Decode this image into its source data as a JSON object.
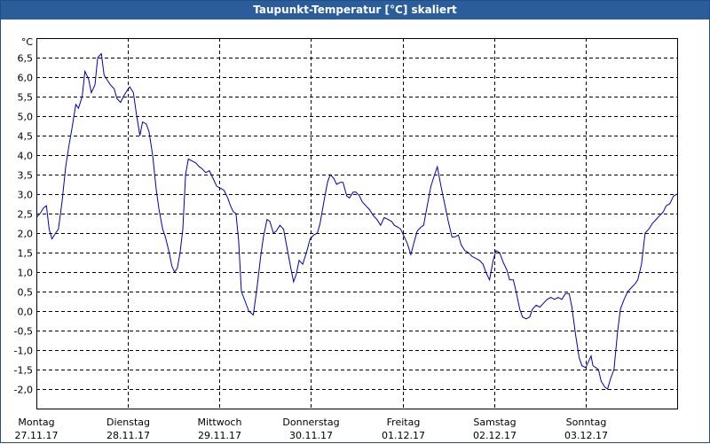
{
  "window": {
    "title": "Taupunkt-Temperatur [°C] skaliert"
  },
  "chart_data": {
    "type": "line",
    "title": "Taupunkt-Temperatur [°C] skaliert",
    "ylabel": "°C",
    "ylim": [
      -2.5,
      7.0
    ],
    "xlim": [
      0,
      7
    ],
    "grid": true,
    "y_ticks": [
      "6,5",
      "6,0",
      "5,5",
      "5,0",
      "4,5",
      "4,0",
      "3,5",
      "3,0",
      "2,5",
      "2,0",
      "1,5",
      "1,0",
      "0,5",
      "0,0",
      "-0,5",
      "-1,0",
      "-1,5",
      "-2,0"
    ],
    "y_tick_values": [
      6.5,
      6.0,
      5.5,
      5.0,
      4.5,
      4.0,
      3.5,
      3.0,
      2.5,
      2.0,
      1.5,
      1.0,
      0.5,
      0.0,
      -0.5,
      -1.0,
      -1.5,
      -2.0
    ],
    "x_ticks": [
      {
        "day": "Montag",
        "date": "27.11.17"
      },
      {
        "day": "Dienstag",
        "date": "28.11.17"
      },
      {
        "day": "Mittwoch",
        "date": "29.11.17"
      },
      {
        "day": "Donnerstag",
        "date": "30.11.17"
      },
      {
        "day": "Freitag",
        "date": "01.12.17"
      },
      {
        "day": "Samstag",
        "date": "02.12.17"
      },
      {
        "day": "Sonntag",
        "date": "03.12.17"
      }
    ],
    "colors": {
      "line": "#0000b0",
      "grid": "#000000",
      "plot_border": "#000000"
    },
    "series": [
      {
        "points": [
          [
            0.0,
            2.4
          ],
          [
            0.04,
            2.5
          ],
          [
            0.08,
            2.65
          ],
          [
            0.11,
            2.7
          ],
          [
            0.14,
            2.1
          ],
          [
            0.17,
            1.85
          ],
          [
            0.21,
            2.0
          ],
          [
            0.24,
            2.1
          ],
          [
            0.28,
            2.8
          ],
          [
            0.32,
            3.7
          ],
          [
            0.36,
            4.3
          ],
          [
            0.39,
            4.7
          ],
          [
            0.43,
            5.3
          ],
          [
            0.46,
            5.2
          ],
          [
            0.5,
            5.5
          ],
          [
            0.53,
            6.15
          ],
          [
            0.57,
            5.95
          ],
          [
            0.6,
            5.6
          ],
          [
            0.64,
            5.8
          ],
          [
            0.67,
            6.5
          ],
          [
            0.71,
            6.6
          ],
          [
            0.74,
            6.05
          ],
          [
            0.78,
            5.9
          ],
          [
            0.81,
            5.8
          ],
          [
            0.85,
            5.7
          ],
          [
            0.88,
            5.45
          ],
          [
            0.92,
            5.35
          ],
          [
            0.95,
            5.5
          ],
          [
            0.99,
            5.65
          ],
          [
            1.02,
            5.75
          ],
          [
            1.06,
            5.6
          ],
          [
            1.09,
            5.1
          ],
          [
            1.13,
            4.5
          ],
          [
            1.16,
            4.85
          ],
          [
            1.2,
            4.8
          ],
          [
            1.23,
            4.6
          ],
          [
            1.27,
            4.0
          ],
          [
            1.31,
            3.1
          ],
          [
            1.34,
            2.6
          ],
          [
            1.38,
            2.1
          ],
          [
            1.41,
            1.9
          ],
          [
            1.45,
            1.5
          ],
          [
            1.48,
            1.15
          ],
          [
            1.51,
            1.0
          ],
          [
            1.54,
            1.1
          ],
          [
            1.57,
            1.5
          ],
          [
            1.6,
            2.1
          ],
          [
            1.63,
            3.5
          ],
          [
            1.66,
            3.9
          ],
          [
            1.7,
            3.85
          ],
          [
            1.74,
            3.8
          ],
          [
            1.78,
            3.7
          ],
          [
            1.81,
            3.65
          ],
          [
            1.85,
            3.55
          ],
          [
            1.89,
            3.6
          ],
          [
            1.93,
            3.4
          ],
          [
            1.97,
            3.2
          ],
          [
            2.01,
            3.15
          ],
          [
            2.05,
            3.1
          ],
          [
            2.09,
            2.9
          ],
          [
            2.12,
            2.7
          ],
          [
            2.15,
            2.55
          ],
          [
            2.18,
            2.5
          ],
          [
            2.21,
            1.8
          ],
          [
            2.24,
            0.5
          ],
          [
            2.28,
            0.25
          ],
          [
            2.32,
            0.0
          ],
          [
            2.37,
            -0.1
          ],
          [
            2.41,
            0.6
          ],
          [
            2.45,
            1.4
          ],
          [
            2.48,
            1.9
          ],
          [
            2.52,
            2.35
          ],
          [
            2.55,
            2.3
          ],
          [
            2.59,
            2.0
          ],
          [
            2.62,
            2.05
          ],
          [
            2.66,
            2.2
          ],
          [
            2.7,
            2.1
          ],
          [
            2.74,
            1.6
          ],
          [
            2.78,
            1.1
          ],
          [
            2.81,
            0.75
          ],
          [
            2.84,
            0.95
          ],
          [
            2.87,
            1.3
          ],
          [
            2.91,
            1.2
          ],
          [
            2.95,
            1.5
          ],
          [
            2.99,
            1.85
          ],
          [
            3.03,
            1.95
          ],
          [
            3.07,
            2.0
          ],
          [
            3.1,
            2.25
          ],
          [
            3.14,
            2.8
          ],
          [
            3.18,
            3.3
          ],
          [
            3.21,
            3.5
          ],
          [
            3.25,
            3.4
          ],
          [
            3.28,
            3.25
          ],
          [
            3.32,
            3.3
          ],
          [
            3.35,
            3.3
          ],
          [
            3.39,
            2.95
          ],
          [
            3.42,
            2.9
          ],
          [
            3.46,
            3.05
          ],
          [
            3.49,
            3.05
          ],
          [
            3.53,
            2.95
          ],
          [
            3.56,
            2.8
          ],
          [
            3.6,
            2.7
          ],
          [
            3.64,
            2.6
          ],
          [
            3.68,
            2.45
          ],
          [
            3.72,
            2.35
          ],
          [
            3.76,
            2.2
          ],
          [
            3.8,
            2.4
          ],
          [
            3.84,
            2.35
          ],
          [
            3.88,
            2.3
          ],
          [
            3.91,
            2.2
          ],
          [
            3.95,
            2.15
          ],
          [
            3.98,
            2.1
          ],
          [
            4.02,
            1.9
          ],
          [
            4.05,
            1.75
          ],
          [
            4.09,
            1.45
          ],
          [
            4.13,
            1.8
          ],
          [
            4.16,
            2.05
          ],
          [
            4.2,
            2.15
          ],
          [
            4.23,
            2.2
          ],
          [
            4.27,
            2.7
          ],
          [
            4.31,
            3.2
          ],
          [
            4.35,
            3.5
          ],
          [
            4.38,
            3.7
          ],
          [
            4.42,
            3.2
          ],
          [
            4.46,
            2.75
          ],
          [
            4.5,
            2.3
          ],
          [
            4.54,
            1.9
          ],
          [
            4.57,
            1.9
          ],
          [
            4.61,
            1.95
          ],
          [
            4.64,
            1.7
          ],
          [
            4.68,
            1.55
          ],
          [
            4.72,
            1.5
          ],
          [
            4.76,
            1.4
          ],
          [
            4.8,
            1.35
          ],
          [
            4.84,
            1.3
          ],
          [
            4.88,
            1.2
          ],
          [
            4.91,
            1.0
          ],
          [
            4.95,
            0.8
          ],
          [
            4.99,
            1.3
          ],
          [
            5.02,
            1.55
          ],
          [
            5.06,
            1.5
          ],
          [
            5.1,
            1.25
          ],
          [
            5.14,
            1.05
          ],
          [
            5.17,
            0.8
          ],
          [
            5.21,
            0.8
          ],
          [
            5.24,
            0.5
          ],
          [
            5.28,
            0.05
          ],
          [
            5.31,
            -0.15
          ],
          [
            5.35,
            -0.2
          ],
          [
            5.39,
            -0.15
          ],
          [
            5.42,
            0.05
          ],
          [
            5.46,
            0.15
          ],
          [
            5.5,
            0.1
          ],
          [
            5.54,
            0.2
          ],
          [
            5.58,
            0.3
          ],
          [
            5.62,
            0.35
          ],
          [
            5.66,
            0.3
          ],
          [
            5.7,
            0.35
          ],
          [
            5.74,
            0.3
          ],
          [
            5.78,
            0.45
          ],
          [
            5.82,
            0.45
          ],
          [
            5.85,
            0.1
          ],
          [
            5.89,
            -0.6
          ],
          [
            5.93,
            -1.2
          ],
          [
            5.96,
            -1.4
          ],
          [
            6.0,
            -1.45
          ],
          [
            6.03,
            -1.3
          ],
          [
            6.06,
            -1.15
          ],
          [
            6.08,
            -1.4
          ],
          [
            6.11,
            -1.45
          ],
          [
            6.14,
            -1.5
          ],
          [
            6.17,
            -1.8
          ],
          [
            6.21,
            -1.95
          ],
          [
            6.24,
            -2.0
          ],
          [
            6.27,
            -1.75
          ],
          [
            6.31,
            -1.5
          ],
          [
            6.35,
            -0.5
          ],
          [
            6.38,
            0.05
          ],
          [
            6.42,
            0.3
          ],
          [
            6.46,
            0.5
          ],
          [
            6.5,
            0.6
          ],
          [
            6.54,
            0.7
          ],
          [
            6.57,
            0.8
          ],
          [
            6.61,
            1.2
          ],
          [
            6.65,
            2.0
          ],
          [
            6.69,
            2.1
          ],
          [
            6.73,
            2.25
          ],
          [
            6.77,
            2.35
          ],
          [
            6.81,
            2.45
          ],
          [
            6.85,
            2.55
          ],
          [
            6.88,
            2.7
          ],
          [
            6.92,
            2.75
          ],
          [
            6.96,
            2.95
          ],
          [
            7.0,
            3.0
          ]
        ]
      }
    ]
  }
}
